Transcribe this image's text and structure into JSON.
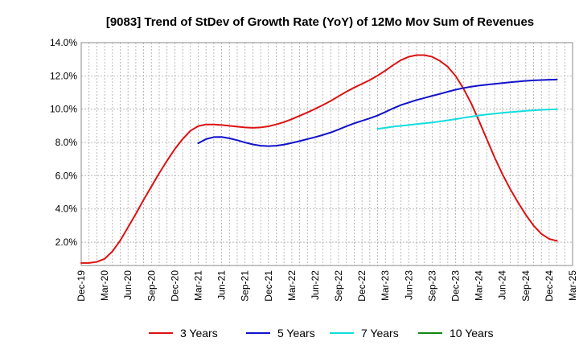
{
  "chart_data": {
    "type": "line",
    "title": "[9083]  Trend of StDev of Growth Rate (YoY) of 12Mo Mov Sum of Revenues",
    "xlabel": "",
    "ylabel": "",
    "ylim": [
      0.6,
      14.0
    ],
    "yticks": [
      "2.0%",
      "4.0%",
      "6.0%",
      "8.0%",
      "10.0%",
      "12.0%",
      "14.0%"
    ],
    "ytick_values": [
      2,
      4,
      6,
      8,
      10,
      12,
      14
    ],
    "xticks": [
      "Dec-19",
      "Mar-20",
      "Jun-20",
      "Sep-20",
      "Dec-20",
      "Mar-21",
      "Jun-21",
      "Sep-21",
      "Dec-21",
      "Mar-22",
      "Jun-22",
      "Sep-22",
      "Dec-22",
      "Mar-23",
      "Jun-23",
      "Sep-23",
      "Dec-23",
      "Mar-24",
      "Jun-24",
      "Sep-24",
      "Dec-24",
      "Mar-25"
    ],
    "x_unit": "months since Dec-19",
    "legend_position": "bottom",
    "series": [
      {
        "name": "3 Years",
        "color": "#dd1111",
        "points": [
          [
            0,
            0.75
          ],
          [
            1,
            0.75
          ],
          [
            2,
            0.82
          ],
          [
            3,
            1.0
          ],
          [
            4,
            1.45
          ],
          [
            5,
            2.1
          ],
          [
            6,
            2.9
          ],
          [
            7,
            3.7
          ],
          [
            8,
            4.55
          ],
          [
            9,
            5.35
          ],
          [
            10,
            6.15
          ],
          [
            11,
            6.9
          ],
          [
            12,
            7.6
          ],
          [
            13,
            8.2
          ],
          [
            14,
            8.7
          ],
          [
            15,
            8.98
          ],
          [
            16,
            9.08
          ],
          [
            17,
            9.08
          ],
          [
            18,
            9.05
          ],
          [
            19,
            9.0
          ],
          [
            20,
            8.95
          ],
          [
            21,
            8.9
          ],
          [
            22,
            8.88
          ],
          [
            23,
            8.9
          ],
          [
            24,
            8.97
          ],
          [
            25,
            9.08
          ],
          [
            26,
            9.22
          ],
          [
            27,
            9.4
          ],
          [
            28,
            9.6
          ],
          [
            29,
            9.8
          ],
          [
            30,
            10.02
          ],
          [
            31,
            10.25
          ],
          [
            32,
            10.5
          ],
          [
            33,
            10.78
          ],
          [
            34,
            11.05
          ],
          [
            35,
            11.3
          ],
          [
            36,
            11.52
          ],
          [
            37,
            11.75
          ],
          [
            38,
            12.02
          ],
          [
            39,
            12.32
          ],
          [
            40,
            12.65
          ],
          [
            41,
            12.95
          ],
          [
            42,
            13.15
          ],
          [
            43,
            13.25
          ],
          [
            44,
            13.25
          ],
          [
            45,
            13.15
          ],
          [
            46,
            12.9
          ],
          [
            47,
            12.55
          ],
          [
            48,
            12.0
          ],
          [
            49,
            11.25
          ],
          [
            50,
            10.35
          ],
          [
            51,
            9.3
          ],
          [
            52,
            8.2
          ],
          [
            53,
            7.1
          ],
          [
            54,
            6.1
          ],
          [
            55,
            5.2
          ],
          [
            56,
            4.4
          ],
          [
            57,
            3.65
          ],
          [
            58,
            3.0
          ],
          [
            59,
            2.5
          ],
          [
            60,
            2.2
          ],
          [
            61,
            2.08
          ]
        ]
      },
      {
        "name": "5 Years",
        "color": "#1111cc",
        "points": [
          [
            15,
            7.95
          ],
          [
            16,
            8.2
          ],
          [
            17,
            8.32
          ],
          [
            18,
            8.33
          ],
          [
            19,
            8.25
          ],
          [
            20,
            8.13
          ],
          [
            21,
            8.0
          ],
          [
            22,
            7.88
          ],
          [
            23,
            7.8
          ],
          [
            24,
            7.78
          ],
          [
            25,
            7.8
          ],
          [
            26,
            7.87
          ],
          [
            27,
            7.97
          ],
          [
            28,
            8.08
          ],
          [
            29,
            8.2
          ],
          [
            30,
            8.32
          ],
          [
            31,
            8.45
          ],
          [
            32,
            8.6
          ],
          [
            33,
            8.78
          ],
          [
            34,
            8.97
          ],
          [
            35,
            9.15
          ],
          [
            36,
            9.3
          ],
          [
            37,
            9.45
          ],
          [
            38,
            9.62
          ],
          [
            39,
            9.83
          ],
          [
            40,
            10.05
          ],
          [
            41,
            10.25
          ],
          [
            42,
            10.4
          ],
          [
            43,
            10.55
          ],
          [
            44,
            10.67
          ],
          [
            45,
            10.8
          ],
          [
            46,
            10.92
          ],
          [
            47,
            11.05
          ],
          [
            48,
            11.17
          ],
          [
            49,
            11.27
          ],
          [
            50,
            11.35
          ],
          [
            51,
            11.42
          ],
          [
            52,
            11.47
          ],
          [
            53,
            11.52
          ],
          [
            54,
            11.57
          ],
          [
            55,
            11.62
          ],
          [
            56,
            11.66
          ],
          [
            57,
            11.7
          ],
          [
            58,
            11.73
          ],
          [
            59,
            11.75
          ],
          [
            60,
            11.77
          ],
          [
            61,
            11.78
          ]
        ]
      },
      {
        "name": "7 Years",
        "color": "#11dddd",
        "points": [
          [
            38,
            8.82
          ],
          [
            39,
            8.88
          ],
          [
            40,
            8.95
          ],
          [
            41,
            9.0
          ],
          [
            42,
            9.05
          ],
          [
            43,
            9.1
          ],
          [
            44,
            9.15
          ],
          [
            45,
            9.2
          ],
          [
            46,
            9.26
          ],
          [
            47,
            9.33
          ],
          [
            48,
            9.4
          ],
          [
            49,
            9.48
          ],
          [
            50,
            9.55
          ],
          [
            51,
            9.62
          ],
          [
            52,
            9.68
          ],
          [
            53,
            9.73
          ],
          [
            54,
            9.78
          ],
          [
            55,
            9.82
          ],
          [
            56,
            9.86
          ],
          [
            57,
            9.9
          ],
          [
            58,
            9.93
          ],
          [
            59,
            9.96
          ],
          [
            60,
            9.98
          ],
          [
            61,
            10.0
          ]
        ]
      },
      {
        "name": "10 Years",
        "color": "#118811",
        "points": []
      }
    ]
  }
}
